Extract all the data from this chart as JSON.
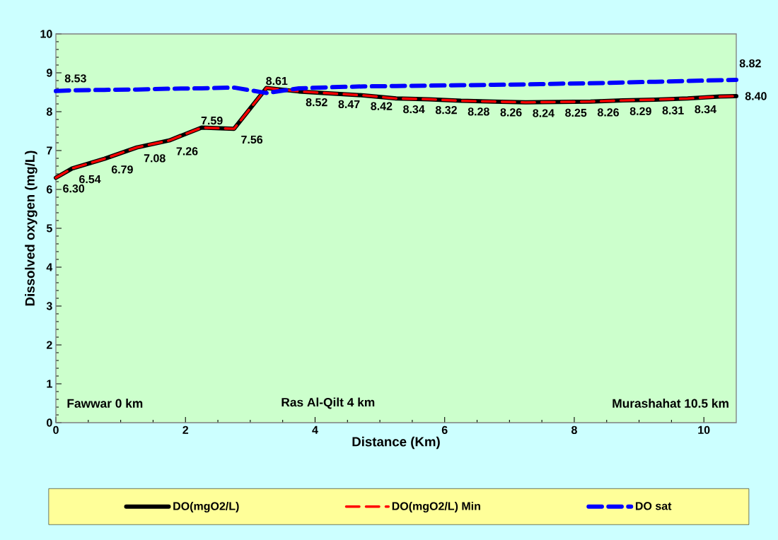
{
  "chart_data": {
    "type": "line",
    "xlabel": "Distance (Km)",
    "ylabel": "Dissolved oxygen (mg/L)",
    "x": [
      0,
      0.25,
      0.75,
      1.25,
      1.75,
      2.25,
      2.75,
      3.25,
      3.75,
      4.25,
      4.75,
      5.25,
      5.75,
      6.25,
      6.75,
      7.25,
      7.75,
      8.25,
      8.75,
      9.25,
      9.75,
      10.25,
      10.5
    ],
    "series": [
      {
        "name": "DO(mgO2/L)",
        "color": "#000000",
        "line_style": "solid",
        "values": [
          6.3,
          6.54,
          6.79,
          7.08,
          7.26,
          7.59,
          7.56,
          8.61,
          8.52,
          8.47,
          8.42,
          8.34,
          8.32,
          8.28,
          8.26,
          8.24,
          8.25,
          8.26,
          8.29,
          8.31,
          8.34,
          8.39,
          8.4
        ],
        "value_labels": [
          "6.30",
          "6.54",
          "6.79",
          "7.08",
          "7.26",
          "7.59",
          "7.56",
          "8.61",
          "8.52",
          "8.47",
          "8.42",
          "8.34",
          "8.32",
          "8.28",
          "8.26",
          "8.24",
          "8.25",
          "8.26",
          "8.29",
          "8.31",
          "8.34",
          null,
          "8.40"
        ]
      },
      {
        "name": "DO(mgO2/L) Min",
        "color": "#ff0000",
        "line_style": "dashed",
        "values": [
          6.3,
          6.54,
          6.79,
          7.08,
          7.26,
          7.59,
          7.56,
          8.61,
          8.52,
          8.47,
          8.42,
          8.34,
          8.32,
          8.28,
          8.26,
          8.24,
          8.25,
          8.26,
          8.29,
          8.31,
          8.34,
          8.39,
          8.4
        ]
      },
      {
        "name": "DO sat",
        "color": "#0000ff",
        "line_style": "dashed",
        "values": [
          8.53,
          8.55,
          8.56,
          8.57,
          8.59,
          8.6,
          8.62,
          8.48,
          8.6,
          8.63,
          8.65,
          8.66,
          8.67,
          8.68,
          8.69,
          8.7,
          8.72,
          8.73,
          8.75,
          8.77,
          8.79,
          8.81,
          8.82
        ],
        "value_labels": [
          "8.53",
          null,
          null,
          null,
          null,
          null,
          null,
          null,
          null,
          null,
          null,
          null,
          null,
          null,
          null,
          null,
          null,
          null,
          null,
          null,
          null,
          null,
          "8.82"
        ]
      }
    ],
    "xlim": [
      0,
      10.5
    ],
    "xticks": [
      0,
      2,
      4,
      6,
      8,
      10
    ],
    "ylim": [
      0,
      10
    ],
    "yticks": [
      0,
      1,
      2,
      3,
      4,
      5,
      6,
      7,
      8,
      9,
      10
    ],
    "annotations": [
      "Fawwar 0 km",
      "Ras Al-Qilt 4 km",
      "Murashahat 10.5 km"
    ],
    "grid": false,
    "legend": "bottom",
    "marker": "none"
  }
}
